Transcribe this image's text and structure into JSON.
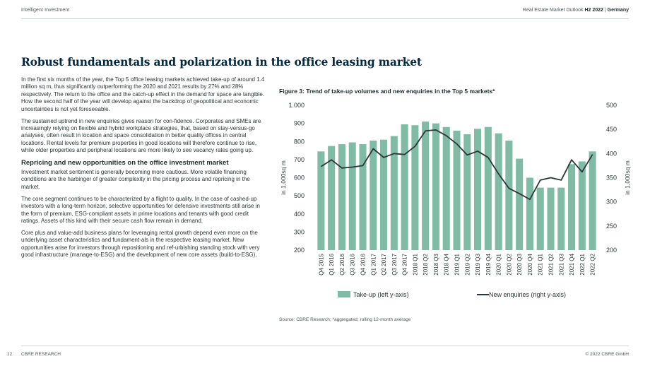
{
  "header": {
    "left": "Intelligent  Investment",
    "right_plain": "Real Estate Market Outlook",
    "right_bold": "H2 2022",
    "right_sep": "|",
    "right_country": "Germany"
  },
  "page_title": "Robust fundamentals and polarization in the office leasing market",
  "body": {
    "p1": "In the first six months of the year, the Top 5 office leasing markets achieved take-up of around 1.4 million sq m, thus significantly outperforming the 2020 and 2021 results by 27% and 28% respectively. The return to the office and the catch-up effect in the demand for space are tangible. How the second half of the year will develop against the backdrop of geopolitical and economic uncertainties is not yet foreseeable.",
    "p2": "The sustained uptrend in new enquiries gives reason for con-fidence. Corporates and SMEs are increasingly relying on flexible and hybrid workplace strategies, that, based on stay-versus-go analyses, often result in location and space consolidation in better quality offices in central locations. Rental levels for premium properties in good locations will therefore continue to rise, while older properties and peripheral locations are more likely to see vacancy rates going up.",
    "heading": "Repricing and new opportunities on the office investment market",
    "p3": "Investment market sentiment is generally becoming more cautious. More volatile financing conditions are the harbinger of greater complexity in the pricing process and repricing in the market.",
    "p4": "The core segment continues to be characterized by a flight to quality. In the case of cashed-up investors with a long-term horizon, selective opportunities for defensive investments still arise in the form of premium, ESG-compliant assets in prime locations and tenants with good credit ratings. Assets of this kind with their secure cash flow remain in demand.",
    "p5": "Core plus and value-add business plans for leveraging rental growth depend even more on the underlying asset characteristics and fundament-als in the respective leasing market. New opportunities arise for investors through repositioning and ref-urbishing standing stock with very good infrastructure (manage-to-ESG) and the development of new core assets (build-to-ESG)."
  },
  "figure": {
    "title": "Figure 3:  Trend of take-up volumes and new enquiries in the Top 5 markets*",
    "source": "Source: CBRE Research; *aggregated; rolling 12-month average"
  },
  "chart_data": {
    "type": "bar",
    "categories": [
      "Q4 2015",
      "Q1 2016",
      "Q2 2016",
      "Q3 2016",
      "Q4 2016",
      "Q1 2017",
      "Q2 2017",
      "Q3 2017",
      "Q4 2017",
      "2018 Q1",
      "2018 Q2",
      "2018 Q3",
      "2018 Q4",
      "2019 Q1",
      "2019 Q2",
      "2019 Q3",
      "2019 Q4",
      "2020 Q1",
      "2020 Q2",
      "2020 Q3",
      "2020 Q4",
      "2021 Q1",
      "2021 Q2",
      "2021 Q3",
      "2021 Q4",
      "2022 Q1",
      "2022 Q2"
    ],
    "series": [
      {
        "name": "Take-up (left y-axis)",
        "axis": "left",
        "kind": "bar",
        "color": "#80bba6",
        "values": [
          745,
          775,
          785,
          795,
          785,
          805,
          810,
          830,
          895,
          890,
          910,
          900,
          880,
          860,
          840,
          870,
          880,
          845,
          805,
          705,
          600,
          545,
          545,
          545,
          675,
          690,
          745
        ]
      },
      {
        "name": "New enquiries (right y-axis)",
        "axis": "right",
        "kind": "line",
        "color": "#2b3636",
        "values": [
          373,
          387,
          370,
          372,
          375,
          410,
          392,
          400,
          398,
          415,
          447,
          449,
          437,
          420,
          397,
          405,
          392,
          358,
          328,
          317,
          305,
          345,
          350,
          345,
          387,
          362,
          398
        ]
      }
    ],
    "y_left": {
      "label": "in 1,000sq m",
      "lim": [
        200,
        1000
      ],
      "ticks": [
        "200",
        "300",
        "400",
        "500",
        "600",
        "700",
        "800",
        "900",
        "1.000"
      ]
    },
    "y_right": {
      "label": "in 1,000sq m",
      "lim": [
        200,
        500
      ],
      "ticks": [
        "200",
        "250",
        "300",
        "350",
        "400",
        "450",
        "500"
      ]
    },
    "grid": false,
    "legend": "bottom"
  },
  "footer": {
    "page": "12",
    "left": "CBRE RESEARCH",
    "right": "© 2022 CBRE GmbH"
  }
}
